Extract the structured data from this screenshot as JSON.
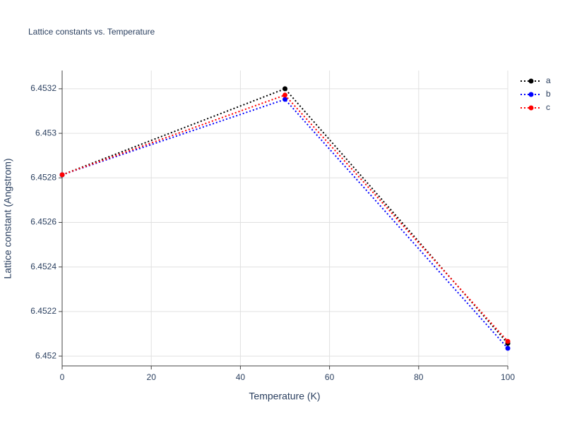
{
  "chart_data": {
    "type": "line",
    "title": "Lattice constants vs. Temperature",
    "x_label": "Temperature (K)",
    "y_label": "Lattice constant (Angstrom)",
    "x": [
      0,
      50,
      100
    ],
    "series": [
      {
        "name": "a",
        "color": "#000000",
        "values": [
          6.4528137,
          6.4532,
          6.452057
        ]
      },
      {
        "name": "b",
        "color": "#0000ff",
        "values": [
          6.452814,
          6.4531525,
          6.452035
        ]
      },
      {
        "name": "c",
        "color": "#ff0000",
        "values": [
          6.452814,
          6.4531715,
          6.452066
        ]
      }
    ],
    "xlim": [
      0,
      100
    ],
    "xticks": [
      0,
      20,
      40,
      60,
      80,
      100
    ],
    "ylim": [
      6.451956,
      6.453282
    ],
    "yticks": [
      6.452,
      6.4522,
      6.4524,
      6.4526,
      6.4528,
      6.453,
      6.4532
    ],
    "grid": true,
    "legend": "top-right"
  }
}
